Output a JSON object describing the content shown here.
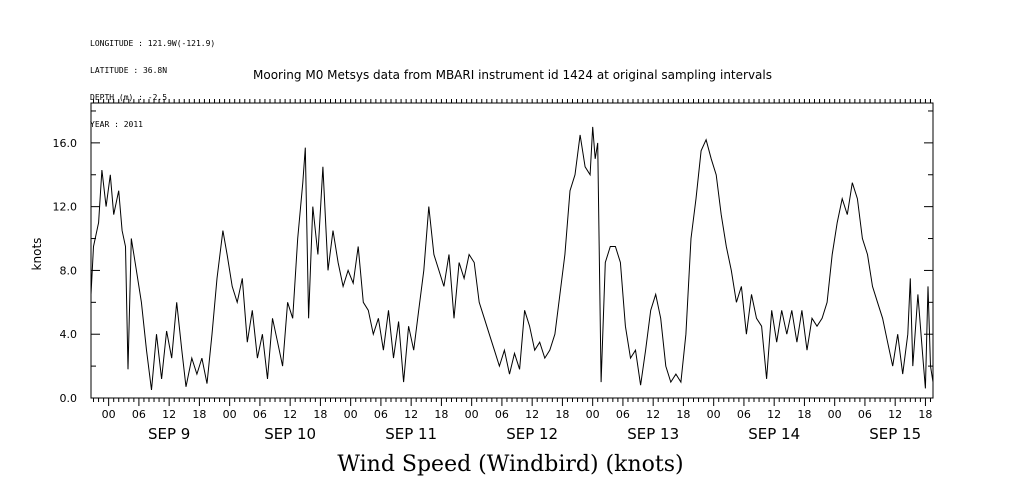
{
  "header_info": {
    "longitude": "LONGITUDE : 121.9W(-121.9)",
    "latitude": "LATITUDE : 36.8N",
    "depth": "DEPTH (m) : -2.5",
    "year": "YEAR : 2011"
  },
  "chart_data": {
    "type": "line",
    "title": "Mooring M0 Metsys data from MBARI instrument id 1424 at original sampling intervals",
    "xlabel": "",
    "ylabel": "knots",
    "caption": "Wind Speed (Windbird) (knots)",
    "ylim": [
      0,
      18.5
    ],
    "y_ticks": [
      "0.0",
      "4.0",
      "8.0",
      "12.0",
      "16.0"
    ],
    "x_range_hours": "2011-09-08 20:30 to 2011-09-15 19:30",
    "hour_tick_labels": [
      "00",
      "06",
      "12",
      "18"
    ],
    "day_labels": [
      {
        "label": "SEP  9",
        "date": "2011-09-09"
      },
      {
        "label": "SEP 10",
        "date": "2011-09-10"
      },
      {
        "label": "SEP 11",
        "date": "2011-09-11"
      },
      {
        "label": "SEP 12",
        "date": "2011-09-12"
      },
      {
        "label": "SEP 13",
        "date": "2011-09-13"
      },
      {
        "label": "SEP 14",
        "date": "2011-09-14"
      },
      {
        "label": "SEP 15",
        "date": "2011-09-15"
      }
    ],
    "grid": false,
    "series": [
      {
        "points": [
          [
            "2011-09-08 20:30",
            6.5
          ],
          [
            "2011-09-08 21:00",
            9.5
          ],
          [
            "2011-09-08 22:00",
            11.0
          ],
          [
            "2011-09-08 22:40",
            14.3
          ],
          [
            "2011-09-08 23:30",
            12.0
          ],
          [
            "2011-09-09 00:20",
            14.0
          ],
          [
            "2011-09-09 01:00",
            11.5
          ],
          [
            "2011-09-09 02:00",
            13.0
          ],
          [
            "2011-09-09 02:40",
            10.5
          ],
          [
            "2011-09-09 03:20",
            9.5
          ],
          [
            "2011-09-09 03:50",
            1.8
          ],
          [
            "2011-09-09 04:30",
            10.0
          ],
          [
            "2011-09-09 05:30",
            8.0
          ],
          [
            "2011-09-09 06:30",
            6.0
          ],
          [
            "2011-09-09 07:30",
            3.0
          ],
          [
            "2011-09-09 08:30",
            0.5
          ],
          [
            "2011-09-09 09:30",
            4.0
          ],
          [
            "2011-09-09 10:30",
            1.2
          ],
          [
            "2011-09-09 11:30",
            4.2
          ],
          [
            "2011-09-09 12:30",
            2.5
          ],
          [
            "2011-09-09 13:30",
            6.0
          ],
          [
            "2011-09-09 14:30",
            3.0
          ],
          [
            "2011-09-09 15:20",
            0.7
          ],
          [
            "2011-09-09 16:30",
            2.5
          ],
          [
            "2011-09-09 17:30",
            1.5
          ],
          [
            "2011-09-09 18:30",
            2.5
          ],
          [
            "2011-09-09 19:30",
            0.9
          ],
          [
            "2011-09-09 20:30",
            4.0
          ],
          [
            "2011-09-09 21:30",
            7.5
          ],
          [
            "2011-09-09 22:40",
            10.5
          ],
          [
            "2011-09-09 23:30",
            9.0
          ],
          [
            "2011-09-10 00:30",
            7.0
          ],
          [
            "2011-09-10 01:30",
            6.0
          ],
          [
            "2011-09-10 02:30",
            7.5
          ],
          [
            "2011-09-10 03:30",
            3.5
          ],
          [
            "2011-09-10 04:30",
            5.5
          ],
          [
            "2011-09-10 05:30",
            2.5
          ],
          [
            "2011-09-10 06:30",
            4.0
          ],
          [
            "2011-09-10 07:30",
            1.2
          ],
          [
            "2011-09-10 08:30",
            5.0
          ],
          [
            "2011-09-10 09:30",
            3.5
          ],
          [
            "2011-09-10 10:30",
            2.0
          ],
          [
            "2011-09-10 11:30",
            6.0
          ],
          [
            "2011-09-10 12:30",
            5.0
          ],
          [
            "2011-09-10 13:30",
            10.0
          ],
          [
            "2011-09-10 14:30",
            13.5
          ],
          [
            "2011-09-10 15:00",
            15.7
          ],
          [
            "2011-09-10 15:40",
            5.0
          ],
          [
            "2011-09-10 16:30",
            12.0
          ],
          [
            "2011-09-10 17:30",
            9.0
          ],
          [
            "2011-09-10 18:30",
            14.5
          ],
          [
            "2011-09-10 19:30",
            8.0
          ],
          [
            "2011-09-10 20:30",
            10.5
          ],
          [
            "2011-09-10 21:30",
            8.5
          ],
          [
            "2011-09-10 22:30",
            7.0
          ],
          [
            "2011-09-10 23:30",
            8.0
          ],
          [
            "2011-09-11 00:30",
            7.2
          ],
          [
            "2011-09-11 01:30",
            9.5
          ],
          [
            "2011-09-11 02:30",
            6.0
          ],
          [
            "2011-09-11 03:30",
            5.5
          ],
          [
            "2011-09-11 04:30",
            4.0
          ],
          [
            "2011-09-11 05:30",
            5.0
          ],
          [
            "2011-09-11 06:30",
            3.0
          ],
          [
            "2011-09-11 07:30",
            5.5
          ],
          [
            "2011-09-11 08:30",
            2.5
          ],
          [
            "2011-09-11 09:30",
            4.8
          ],
          [
            "2011-09-11 10:30",
            1.0
          ],
          [
            "2011-09-11 11:30",
            4.5
          ],
          [
            "2011-09-11 12:30",
            3.0
          ],
          [
            "2011-09-11 13:30",
            5.5
          ],
          [
            "2011-09-11 14:30",
            8.0
          ],
          [
            "2011-09-11 15:30",
            12.0
          ],
          [
            "2011-09-11 16:30",
            9.0
          ],
          [
            "2011-09-11 17:30",
            8.0
          ],
          [
            "2011-09-11 18:30",
            7.0
          ],
          [
            "2011-09-11 19:30",
            9.0
          ],
          [
            "2011-09-11 20:30",
            5.0
          ],
          [
            "2011-09-11 21:30",
            8.5
          ],
          [
            "2011-09-11 22:30",
            7.5
          ],
          [
            "2011-09-11 23:30",
            9.0
          ],
          [
            "2011-09-12 00:30",
            8.5
          ],
          [
            "2011-09-12 01:30",
            6.0
          ],
          [
            "2011-09-12 02:30",
            5.0
          ],
          [
            "2011-09-12 03:30",
            4.0
          ],
          [
            "2011-09-12 04:30",
            3.0
          ],
          [
            "2011-09-12 05:30",
            2.0
          ],
          [
            "2011-09-12 06:30",
            3.0
          ],
          [
            "2011-09-12 07:30",
            1.5
          ],
          [
            "2011-09-12 08:30",
            2.8
          ],
          [
            "2011-09-12 09:30",
            1.8
          ],
          [
            "2011-09-12 10:30",
            5.5
          ],
          [
            "2011-09-12 11:30",
            4.5
          ],
          [
            "2011-09-12 12:30",
            3.0
          ],
          [
            "2011-09-12 13:30",
            3.5
          ],
          [
            "2011-09-12 14:30",
            2.5
          ],
          [
            "2011-09-12 15:30",
            3.0
          ],
          [
            "2011-09-12 16:30",
            4.0
          ],
          [
            "2011-09-12 17:30",
            6.5
          ],
          [
            "2011-09-12 18:30",
            9.0
          ],
          [
            "2011-09-12 19:30",
            13.0
          ],
          [
            "2011-09-12 20:30",
            14.0
          ],
          [
            "2011-09-12 21:30",
            16.5
          ],
          [
            "2011-09-12 22:30",
            14.5
          ],
          [
            "2011-09-12 23:30",
            14.0
          ],
          [
            "2011-09-13 00:00",
            17.0
          ],
          [
            "2011-09-13 00:30",
            15.0
          ],
          [
            "2011-09-13 01:00",
            16.0
          ],
          [
            "2011-09-13 01:40",
            1.0
          ],
          [
            "2011-09-13 02:30",
            8.5
          ],
          [
            "2011-09-13 03:30",
            9.5
          ],
          [
            "2011-09-13 04:30",
            9.5
          ],
          [
            "2011-09-13 05:30",
            8.5
          ],
          [
            "2011-09-13 06:30",
            4.5
          ],
          [
            "2011-09-13 07:30",
            2.5
          ],
          [
            "2011-09-13 08:30",
            3.0
          ],
          [
            "2011-09-13 09:30",
            0.8
          ],
          [
            "2011-09-13 10:30",
            3.0
          ],
          [
            "2011-09-13 11:30",
            5.5
          ],
          [
            "2011-09-13 12:30",
            6.5
          ],
          [
            "2011-09-13 13:30",
            5.0
          ],
          [
            "2011-09-13 14:30",
            2.0
          ],
          [
            "2011-09-13 15:30",
            1.0
          ],
          [
            "2011-09-13 16:30",
            1.5
          ],
          [
            "2011-09-13 17:30",
            1.0
          ],
          [
            "2011-09-13 18:30",
            4.0
          ],
          [
            "2011-09-13 19:30",
            10.0
          ],
          [
            "2011-09-13 20:30",
            12.5
          ],
          [
            "2011-09-13 21:30",
            15.5
          ],
          [
            "2011-09-13 22:30",
            16.2
          ],
          [
            "2011-09-13 23:30",
            15.0
          ],
          [
            "2011-09-14 00:30",
            14.0
          ],
          [
            "2011-09-14 01:30",
            11.5
          ],
          [
            "2011-09-14 02:30",
            9.5
          ],
          [
            "2011-09-14 03:30",
            8.0
          ],
          [
            "2011-09-14 04:30",
            6.0
          ],
          [
            "2011-09-14 05:30",
            7.0
          ],
          [
            "2011-09-14 06:30",
            4.0
          ],
          [
            "2011-09-14 07:30",
            6.5
          ],
          [
            "2011-09-14 08:30",
            5.0
          ],
          [
            "2011-09-14 09:30",
            4.5
          ],
          [
            "2011-09-14 10:30",
            1.2
          ],
          [
            "2011-09-14 11:30",
            5.5
          ],
          [
            "2011-09-14 12:30",
            3.5
          ],
          [
            "2011-09-14 13:30",
            5.5
          ],
          [
            "2011-09-14 14:30",
            4.0
          ],
          [
            "2011-09-14 15:30",
            5.5
          ],
          [
            "2011-09-14 16:30",
            3.5
          ],
          [
            "2011-09-14 17:30",
            5.5
          ],
          [
            "2011-09-14 18:30",
            3.0
          ],
          [
            "2011-09-14 19:30",
            5.0
          ],
          [
            "2011-09-14 20:30",
            4.5
          ],
          [
            "2011-09-14 21:30",
            5.0
          ],
          [
            "2011-09-14 22:30",
            6.0
          ],
          [
            "2011-09-14 23:30",
            9.0
          ],
          [
            "2011-09-15 00:30",
            11.0
          ],
          [
            "2011-09-15 01:30",
            12.5
          ],
          [
            "2011-09-15 02:30",
            11.5
          ],
          [
            "2011-09-15 03:30",
            13.5
          ],
          [
            "2011-09-15 04:30",
            12.5
          ],
          [
            "2011-09-15 05:30",
            10.0
          ],
          [
            "2011-09-15 06:30",
            9.0
          ],
          [
            "2011-09-15 07:30",
            7.0
          ],
          [
            "2011-09-15 08:30",
            6.0
          ],
          [
            "2011-09-15 09:30",
            5.0
          ],
          [
            "2011-09-15 10:30",
            3.5
          ],
          [
            "2011-09-15 11:30",
            2.0
          ],
          [
            "2011-09-15 12:30",
            4.0
          ],
          [
            "2011-09-15 13:30",
            1.5
          ],
          [
            "2011-09-15 14:30",
            4.0
          ],
          [
            "2011-09-15 15:00",
            7.5
          ],
          [
            "2011-09-15 15:30",
            2.0
          ],
          [
            "2011-09-15 16:30",
            6.5
          ],
          [
            "2011-09-15 17:30",
            2.5
          ],
          [
            "2011-09-15 18:00",
            0.6
          ],
          [
            "2011-09-15 18:30",
            7.0
          ],
          [
            "2011-09-15 19:00",
            2.0
          ],
          [
            "2011-09-15 19:30",
            1.0
          ]
        ]
      }
    ]
  }
}
